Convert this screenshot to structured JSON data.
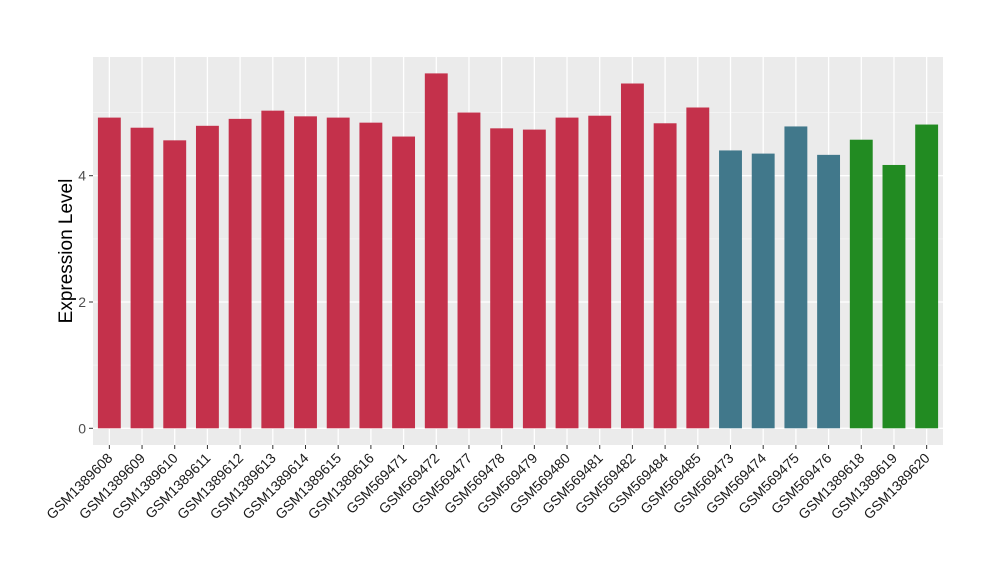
{
  "chart_data": {
    "type": "bar",
    "title": "",
    "xlabel": "",
    "ylabel": "Expression Level",
    "ylim": [
      0,
      5.9
    ],
    "yticks": [
      0,
      2,
      4
    ],
    "grid": true,
    "legend": "none",
    "categories": [
      "GSM1389608",
      "GSM1389609",
      "GSM1389610",
      "GSM1389611",
      "GSM1389612",
      "GSM1389613",
      "GSM1389614",
      "GSM1389615",
      "GSM1389616",
      "GSM569471",
      "GSM569472",
      "GSM569477",
      "GSM569478",
      "GSM569479",
      "GSM569480",
      "GSM569481",
      "GSM569482",
      "GSM569484",
      "GSM569485",
      "GSM569473",
      "GSM569474",
      "GSM569475",
      "GSM569476",
      "GSM1389618",
      "GSM1389619",
      "GSM1389620"
    ],
    "values": [
      4.92,
      4.76,
      4.56,
      4.79,
      4.9,
      5.03,
      4.94,
      4.92,
      4.84,
      4.62,
      5.62,
      5.0,
      4.75,
      4.73,
      4.92,
      4.95,
      5.46,
      4.83,
      5.08,
      4.4,
      4.35,
      4.78,
      4.33,
      4.57,
      4.17,
      4.81
    ],
    "groups": [
      0,
      0,
      0,
      0,
      0,
      0,
      0,
      0,
      0,
      0,
      0,
      0,
      0,
      0,
      0,
      0,
      0,
      0,
      0,
      1,
      1,
      1,
      1,
      2,
      2,
      2
    ],
    "group_colors": [
      "#c4314b",
      "#41788b",
      "#228b22"
    ]
  }
}
